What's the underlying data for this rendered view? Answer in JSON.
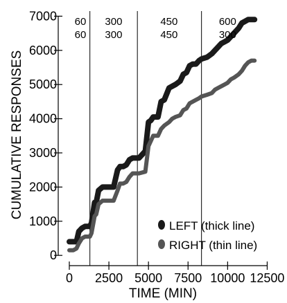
{
  "chart_data": {
    "type": "line",
    "xlabel": "TIME (MIN)",
    "ylabel": "CUMULATIVE RESPONSES",
    "xlim": [
      -700,
      12700
    ],
    "ylim": [
      -300,
      7150
    ],
    "xticks": [
      0,
      2500,
      5000,
      7500,
      10000,
      12500
    ],
    "xtick_labels": [
      "0",
      "2500",
      "5000",
      "7500",
      "10000",
      "12500"
    ],
    "yticks": [
      0,
      1000,
      2000,
      3000,
      4000,
      5000,
      6000,
      7000
    ],
    "ytick_labels": [
      "0",
      "1000",
      "2000",
      "3000",
      "4000",
      "5000",
      "6000",
      "7000"
    ],
    "grid": false,
    "legend_position": "bottom-right",
    "condition_boundaries": [
      1300,
      4300,
      8350
    ],
    "conditions": [
      {
        "x": 700,
        "top": "60",
        "bottom": "60"
      },
      {
        "x": 2800,
        "top": "300",
        "bottom": "300"
      },
      {
        "x": 6300,
        "top": "450",
        "bottom": "450"
      },
      {
        "x": 10000,
        "top": "600",
        "bottom": "300"
      }
    ],
    "series": [
      {
        "name": "LEFT (thick line)",
        "color": "#1a1a1a",
        "width": 8,
        "x": [
          0,
          250,
          450,
          600,
          800,
          1000,
          1300,
          1400,
          1600,
          1700,
          1850,
          2100,
          2400,
          2800,
          3050,
          3200,
          3400,
          3600,
          3800,
          4000,
          4150,
          4400,
          4800,
          5000,
          5150,
          5300,
          5600,
          5800,
          6000,
          6300,
          6500,
          6700,
          7000,
          7200,
          7400,
          7600,
          7800,
          8000,
          8200,
          8350,
          8700,
          9000,
          9200,
          9400,
          9600,
          9800,
          10000,
          10200,
          10400,
          10700,
          10900,
          11100,
          11300,
          11500,
          11700
        ],
        "y": [
          400,
          400,
          400,
          700,
          800,
          850,
          850,
          950,
          1550,
          1550,
          1900,
          2000,
          2000,
          2000,
          2500,
          2600,
          2600,
          2650,
          2800,
          2850,
          2850,
          2850,
          3050,
          3900,
          3950,
          4050,
          4050,
          4500,
          4550,
          4900,
          4950,
          5000,
          5100,
          5300,
          5350,
          5550,
          5600,
          5600,
          5700,
          5750,
          5800,
          5900,
          6000,
          6100,
          6200,
          6250,
          6300,
          6400,
          6500,
          6650,
          6800,
          6850,
          6900,
          6900,
          6900
        ]
      },
      {
        "name": "RIGHT (thin line)",
        "color": "#555555",
        "width": 6,
        "x": [
          0,
          250,
          450,
          600,
          800,
          1000,
          1300,
          1400,
          1600,
          1700,
          1850,
          2100,
          2400,
          2800,
          3050,
          3200,
          3400,
          3600,
          3800,
          4000,
          4150,
          4400,
          4800,
          5000,
          5150,
          5300,
          5600,
          5800,
          6000,
          6300,
          6500,
          6700,
          7000,
          7200,
          7400,
          7600,
          7800,
          8000,
          8200,
          8350,
          8700,
          9000,
          9200,
          9400,
          9600,
          9800,
          10000,
          10200,
          10400,
          10700,
          10900,
          11100,
          11300,
          11500,
          11700
        ],
        "y": [
          150,
          150,
          200,
          350,
          500,
          550,
          550,
          650,
          1150,
          1200,
          1500,
          1600,
          1600,
          1600,
          1900,
          2100,
          2100,
          2150,
          2300,
          2400,
          2400,
          2400,
          2450,
          3200,
          3350,
          3500,
          3500,
          3700,
          3800,
          3900,
          4000,
          4050,
          4100,
          4250,
          4300,
          4450,
          4500,
          4550,
          4600,
          4650,
          4700,
          4750,
          4850,
          4900,
          4950,
          5000,
          5050,
          5150,
          5200,
          5300,
          5400,
          5550,
          5650,
          5700,
          5700
        ]
      }
    ]
  }
}
